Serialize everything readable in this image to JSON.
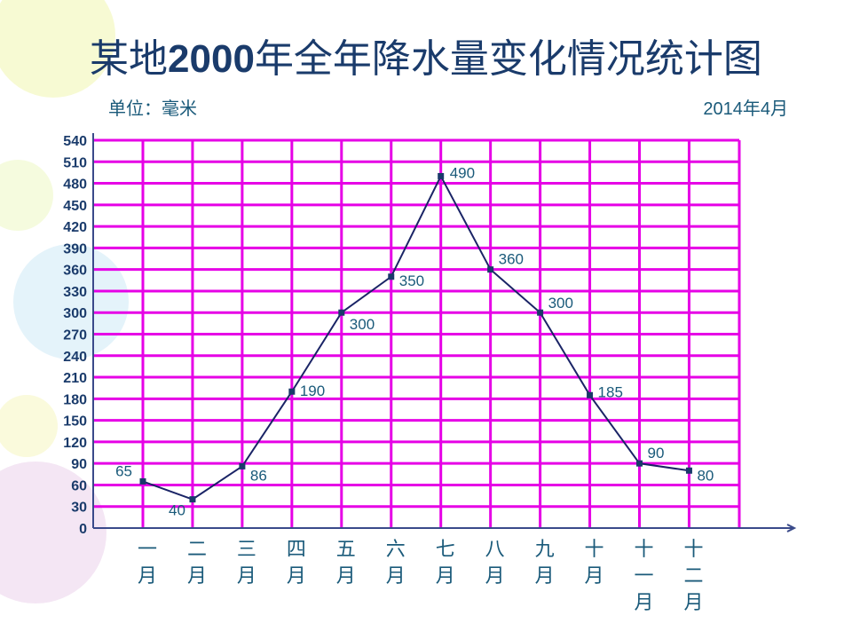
{
  "title_prefix": "某地",
  "title_year": "2000",
  "title_suffix": "年全年降水量变化情况统计图",
  "unit_label": "单位：毫米",
  "date_label": "2014年4月",
  "colors": {
    "grid": "#e600e6",
    "line": "#1a2466",
    "text": "#1a5a7a",
    "title": "#1a3b6b"
  },
  "chart_data": {
    "type": "line",
    "title": "某地2000年全年降水量变化情况统计图",
    "ylabel": "单位：毫米",
    "xlabel": "",
    "ylim": [
      0,
      540
    ],
    "y_step": 30,
    "grid": true,
    "categories": [
      "一月",
      "二月",
      "三月",
      "四月",
      "五月",
      "六月",
      "七月",
      "八月",
      "九月",
      "十月",
      "十一月",
      "十二月"
    ],
    "category_lines": [
      [
        "一",
        "月"
      ],
      [
        "二",
        "月"
      ],
      [
        "三",
        "月"
      ],
      [
        "四",
        "月"
      ],
      [
        "五",
        "月"
      ],
      [
        "六",
        "月"
      ],
      [
        "七",
        "月"
      ],
      [
        "八",
        "月"
      ],
      [
        "九",
        "月"
      ],
      [
        "十",
        "月"
      ],
      [
        "十",
        "一",
        "月"
      ],
      [
        "十",
        "二",
        "月"
      ]
    ],
    "y_ticks": [
      0,
      30,
      60,
      90,
      120,
      150,
      180,
      210,
      240,
      270,
      300,
      330,
      360,
      390,
      420,
      450,
      480,
      510,
      540
    ],
    "values": [
      65,
      40,
      86,
      190,
      300,
      350,
      490,
      360,
      300,
      185,
      90,
      80
    ],
    "point_labels": [
      "65",
      "40",
      "86",
      "190",
      "300",
      "350",
      "490",
      "360",
      "300",
      "185",
      "90",
      "80"
    ]
  }
}
